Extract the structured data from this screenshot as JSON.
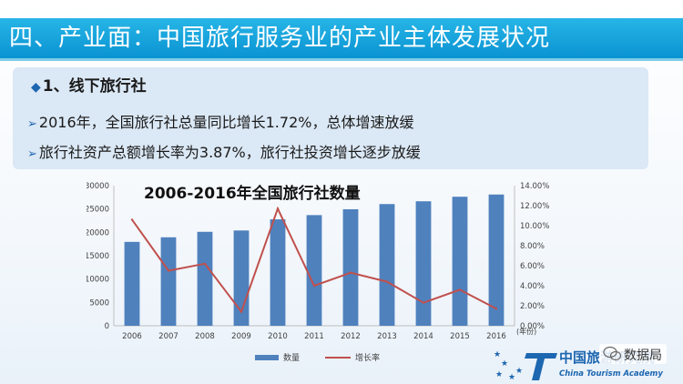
{
  "slide": {
    "title": "四、产业面：中国旅行服务业的产业主体发展状况",
    "section_label": "1、线下旅行社",
    "points": [
      "2016年，全国旅行社总量同比增长1.72%，总体增速放缓",
      "旅行社资产总额增长率为3.87%，旅行社投资增长逐步放缓"
    ]
  },
  "colors": {
    "title_bar": "#0a93d2",
    "bar": "#4f81bd",
    "line": "#c0504d"
  },
  "chart_data": {
    "type": "bar",
    "title": "2006-2016年全国旅行社数量",
    "categories": [
      "2006",
      "2007",
      "2008",
      "2009",
      "2010",
      "2011",
      "2012",
      "2013",
      "2014",
      "2015",
      "2016"
    ],
    "series": [
      {
        "name": "数量",
        "type": "bar",
        "axis": "left",
        "values": [
          17957,
          18943,
          20110,
          20399,
          22784,
          23690,
          24944,
          26054,
          26650,
          27621,
          28097
        ]
      },
      {
        "name": "增长率",
        "type": "line",
        "axis": "right",
        "values": [
          10.6,
          5.5,
          6.2,
          1.4,
          11.7,
          4.0,
          5.3,
          4.4,
          2.3,
          3.6,
          1.7
        ]
      }
    ],
    "y_left": {
      "min": 0,
      "max": 30000,
      "ticks": [
        "0",
        "5000",
        "10000",
        "15000",
        "20000",
        "25000",
        "30000"
      ]
    },
    "y_right": {
      "min": 0,
      "max": 14,
      "ticks": [
        "0.00%",
        "2.00%",
        "4.00%",
        "6.00%",
        "8.00%",
        "10.00%",
        "12.00%",
        "14.00%"
      ]
    },
    "x_unit": "(年份)",
    "legend": [
      "数量",
      "增长率"
    ],
    "legend_position": "bottom"
  },
  "logo": {
    "org_cn": "中国旅游研究院",
    "org_en": "China Tourism Academy",
    "watermark": "数据局"
  }
}
